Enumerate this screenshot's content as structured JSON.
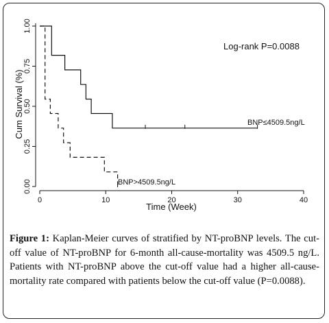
{
  "chart_data": {
    "type": "line",
    "title": "",
    "xlabel": "Time (Week)",
    "ylabel": "Cum Survival (%)",
    "xlim": [
      0,
      40
    ],
    "ylim": [
      0,
      1
    ],
    "x_ticks": [
      "0",
      "10",
      "20",
      "30",
      "40"
    ],
    "y_ticks": [
      "0.00",
      "0.25",
      "0.50",
      "0.75",
      "1.00"
    ],
    "annotation": "Log-rank P=0.0088",
    "series": [
      {
        "name": "BNP≤4509.5ng/L",
        "style": "solid",
        "points": [
          [
            0,
            1.0
          ],
          [
            1.8,
            1.0
          ],
          [
            1.8,
            0.818
          ],
          [
            3.8,
            0.818
          ],
          [
            3.8,
            0.727
          ],
          [
            6.2,
            0.727
          ],
          [
            6.2,
            0.636
          ],
          [
            7.0,
            0.636
          ],
          [
            7.0,
            0.545
          ],
          [
            7.8,
            0.545
          ],
          [
            7.8,
            0.455
          ],
          [
            11.0,
            0.455
          ],
          [
            11.0,
            0.364
          ],
          [
            33.0,
            0.364
          ]
        ],
        "censor_marks": [
          16.0,
          22.0,
          33.0
        ]
      },
      {
        "name": "BNP>4509.5ng/L",
        "style": "dashed",
        "points": [
          [
            0,
            1.0
          ],
          [
            0.8,
            1.0
          ],
          [
            0.8,
            0.545
          ],
          [
            1.6,
            0.545
          ],
          [
            1.6,
            0.455
          ],
          [
            2.8,
            0.455
          ],
          [
            2.8,
            0.364
          ],
          [
            3.6,
            0.364
          ],
          [
            3.6,
            0.273
          ],
          [
            4.6,
            0.273
          ],
          [
            4.6,
            0.182
          ],
          [
            9.8,
            0.182
          ],
          [
            9.8,
            0.091
          ],
          [
            11.8,
            0.091
          ],
          [
            11.8,
            0.0
          ]
        ],
        "censor_marks": [
          11.8
        ]
      }
    ]
  },
  "caption": {
    "label": "Figure 1:",
    "text": " Kaplan-Meier curves of stratified by NT-proBNP levels. The cut-off value of NT-proBNP for 6-month all-cause-mortality was 4509.5 ng/L. Patients with NT-proBNP above the cut-off value had a higher all-cause-mortality rate compared with patients below the cut-off value (P=0.0088)."
  }
}
